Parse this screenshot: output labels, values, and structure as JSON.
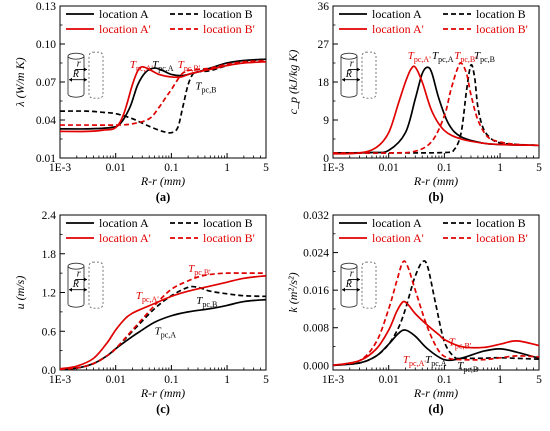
{
  "figure": {
    "legend_labels": [
      "location A",
      "location B",
      "location A'",
      "location B'"
    ],
    "inset_labels": {
      "r": "r",
      "R": "R"
    }
  },
  "chart_data": [
    {
      "type": "line",
      "panel_label": "(a)",
      "ylabel": "λ (W/m K)",
      "xlabel": "R-r (mm)",
      "xscale": "log",
      "xlim": [
        0.001,
        5
      ],
      "ylim": [
        0.01,
        0.13
      ],
      "xticks": [
        0.001,
        0.01,
        0.1,
        1,
        5
      ],
      "xtick_labels": [
        "1E-3",
        "0.01",
        "0.1",
        "1",
        "5"
      ],
      "yticks": [
        0.01,
        0.04,
        0.07,
        0.1,
        0.13
      ],
      "ytick_labels": [
        "0.01",
        "0.04",
        "0.07",
        "0.10",
        "0.13"
      ],
      "legend": "top",
      "series": [
        {
          "name": "location A",
          "color": "#000000",
          "dash": false,
          "x": [
            0.001,
            0.003,
            0.008,
            0.012,
            0.018,
            0.025,
            0.035,
            0.05,
            0.07,
            0.1,
            0.15,
            0.2,
            0.3,
            0.5,
            1,
            2,
            5
          ],
          "y": [
            0.033,
            0.033,
            0.034,
            0.037,
            0.05,
            0.068,
            0.078,
            0.081,
            0.079,
            0.076,
            0.075,
            0.076,
            0.078,
            0.081,
            0.085,
            0.087,
            0.088
          ]
        },
        {
          "name": "location B",
          "color": "#000000",
          "dash": true,
          "x": [
            0.001,
            0.003,
            0.006,
            0.01,
            0.02,
            0.04,
            0.07,
            0.1,
            0.13,
            0.16,
            0.2,
            0.25,
            0.3,
            0.5,
            1,
            2,
            5
          ],
          "y": [
            0.047,
            0.047,
            0.046,
            0.045,
            0.041,
            0.035,
            0.031,
            0.03,
            0.034,
            0.05,
            0.068,
            0.077,
            0.078,
            0.079,
            0.083,
            0.086,
            0.088
          ]
        },
        {
          "name": "location A'",
          "color": "#e00000",
          "dash": false,
          "x": [
            0.001,
            0.003,
            0.006,
            0.01,
            0.014,
            0.02,
            0.025,
            0.03,
            0.04,
            0.06,
            0.1,
            0.15,
            0.2,
            0.3,
            0.5,
            1,
            2,
            5
          ],
          "y": [
            0.031,
            0.031,
            0.032,
            0.034,
            0.045,
            0.068,
            0.079,
            0.082,
            0.08,
            0.076,
            0.074,
            0.074,
            0.076,
            0.078,
            0.08,
            0.083,
            0.085,
            0.086
          ]
        },
        {
          "name": "location B'",
          "color": "#e00000",
          "dash": true,
          "x": [
            0.001,
            0.003,
            0.01,
            0.02,
            0.04,
            0.06,
            0.08,
            0.1,
            0.13,
            0.16,
            0.2,
            0.3,
            0.5,
            1,
            2,
            5
          ],
          "y": [
            0.036,
            0.036,
            0.036,
            0.037,
            0.041,
            0.05,
            0.058,
            0.064,
            0.072,
            0.077,
            0.079,
            0.08,
            0.081,
            0.084,
            0.086,
            0.087
          ]
        }
      ],
      "annotations": [
        {
          "text": "T",
          "sub": "pc,A'",
          "color": "#e00000",
          "x": 0.018,
          "y": 0.081
        },
        {
          "text": "T",
          "sub": "pc,A",
          "color": "#000000",
          "x": 0.045,
          "y": 0.081
        },
        {
          "text": "T",
          "sub": "pc,B'",
          "color": "#e00000",
          "x": 0.13,
          "y": 0.081
        },
        {
          "text": "T",
          "sub": "pc,B",
          "color": "#000000",
          "x": 0.27,
          "y": 0.064
        }
      ]
    },
    {
      "type": "line",
      "panel_label": "(b)",
      "ylabel": "c_p (kJ/kg K)",
      "xlabel": "R-r (mm)",
      "xscale": "log",
      "xlim": [
        0.001,
        5
      ],
      "ylim": [
        0,
        36
      ],
      "xticks": [
        0.001,
        0.01,
        0.1,
        1,
        5
      ],
      "xtick_labels": [
        "1E-3",
        "0.01",
        "0.1",
        "1",
        "5"
      ],
      "yticks": [
        0,
        9,
        18,
        27,
        36
      ],
      "ytick_labels": [
        "0",
        "9",
        "18",
        "27",
        "36"
      ],
      "legend": "top",
      "series": [
        {
          "name": "location A",
          "color": "#000000",
          "dash": false,
          "x": [
            0.001,
            0.005,
            0.01,
            0.02,
            0.03,
            0.04,
            0.05,
            0.06,
            0.08,
            0.12,
            0.2,
            0.5,
            1,
            5
          ],
          "y": [
            1.2,
            1.3,
            1.8,
            6,
            14,
            20,
            21.5,
            20,
            14,
            8,
            5,
            3.5,
            3.2,
            3.0
          ]
        },
        {
          "name": "location B",
          "color": "#000000",
          "dash": true,
          "x": [
            0.001,
            0.01,
            0.1,
            0.15,
            0.2,
            0.25,
            0.3,
            0.35,
            0.4,
            0.5,
            0.7,
            1,
            2,
            5
          ],
          "y": [
            1.2,
            1.2,
            1.3,
            2,
            6,
            16,
            22,
            19,
            12,
            7,
            4.5,
            3.6,
            3.2,
            3.0
          ]
        },
        {
          "name": "location A'",
          "color": "#e00000",
          "dash": false,
          "x": [
            0.001,
            0.003,
            0.006,
            0.01,
            0.015,
            0.02,
            0.025,
            0.03,
            0.04,
            0.06,
            0.1,
            0.2,
            0.5,
            1,
            5
          ],
          "y": [
            1.0,
            1.2,
            2.5,
            6,
            13,
            18,
            21,
            21.5,
            18,
            11,
            6.5,
            4.5,
            3.5,
            3.2,
            3.0
          ]
        },
        {
          "name": "location B'",
          "color": "#e00000",
          "dash": true,
          "x": [
            0.001,
            0.01,
            0.03,
            0.06,
            0.1,
            0.13,
            0.17,
            0.2,
            0.25,
            0.3,
            0.4,
            0.6,
            1,
            2,
            5
          ],
          "y": [
            1.2,
            1.2,
            1.6,
            4,
            10,
            16,
            21,
            22.5,
            20,
            15,
            9,
            5,
            3.8,
            3.2,
            3.0
          ]
        }
      ],
      "annotations": [
        {
          "text": "T",
          "sub": "pc,A'",
          "color": "#e00000",
          "x": 0.022,
          "y": 23.5
        },
        {
          "text": "T",
          "sub": "pc,A",
          "color": "#000000",
          "x": 0.06,
          "y": 23.5
        },
        {
          "text": "T",
          "sub": "pc,B'",
          "color": "#e00000",
          "x": 0.15,
          "y": 23.5
        },
        {
          "text": "T",
          "sub": "pc,B",
          "color": "#000000",
          "x": 0.34,
          "y": 23.5
        }
      ]
    },
    {
      "type": "line",
      "panel_label": "(c)",
      "ylabel": "u (m/s)",
      "xlabel": "R-r (mm)",
      "xscale": "log",
      "xlim": [
        0.001,
        5
      ],
      "ylim": [
        0,
        2.4
      ],
      "xticks": [
        0.001,
        0.01,
        0.1,
        1,
        5
      ],
      "xtick_labels": [
        "1E-3",
        "0.01",
        "0.1",
        "1",
        "5"
      ],
      "yticks": [
        0.0,
        0.6,
        1.2,
        1.8,
        2.4
      ],
      "ytick_labels": [
        "0.0",
        "0.6",
        "1.2",
        "1.8",
        "2.4"
      ],
      "legend": "top",
      "series": [
        {
          "name": "location A",
          "color": "#000000",
          "dash": false,
          "x": [
            0.001,
            0.002,
            0.004,
            0.007,
            0.01,
            0.02,
            0.03,
            0.05,
            0.1,
            0.2,
            0.5,
            1,
            2,
            5
          ],
          "y": [
            0.01,
            0.03,
            0.1,
            0.22,
            0.33,
            0.52,
            0.62,
            0.74,
            0.84,
            0.9,
            0.95,
            1.0,
            1.06,
            1.09
          ]
        },
        {
          "name": "location B",
          "color": "#000000",
          "dash": true,
          "x": [
            0.001,
            0.002,
            0.004,
            0.007,
            0.01,
            0.02,
            0.05,
            0.1,
            0.2,
            0.3,
            0.5,
            1,
            2,
            5
          ],
          "y": [
            0.01,
            0.03,
            0.1,
            0.22,
            0.33,
            0.6,
            0.95,
            1.15,
            1.28,
            1.28,
            1.22,
            1.18,
            1.15,
            1.14
          ]
        },
        {
          "name": "location A'",
          "color": "#e00000",
          "dash": false,
          "x": [
            0.001,
            0.002,
            0.004,
            0.007,
            0.01,
            0.015,
            0.02,
            0.03,
            0.05,
            0.1,
            0.2,
            0.5,
            1,
            2,
            5
          ],
          "y": [
            0.02,
            0.06,
            0.18,
            0.42,
            0.62,
            0.8,
            0.88,
            0.95,
            1.03,
            1.14,
            1.22,
            1.3,
            1.36,
            1.42,
            1.46
          ]
        },
        {
          "name": "location B'",
          "color": "#e00000",
          "dash": true,
          "x": [
            0.001,
            0.002,
            0.004,
            0.007,
            0.01,
            0.02,
            0.05,
            0.1,
            0.2,
            0.3,
            0.5,
            1,
            2,
            5
          ],
          "y": [
            0.01,
            0.03,
            0.1,
            0.22,
            0.33,
            0.62,
            1.0,
            1.25,
            1.38,
            1.44,
            1.48,
            1.5,
            1.5,
            1.5
          ]
        }
      ],
      "annotations": [
        {
          "text": "T",
          "sub": "pc,A'",
          "color": "#e00000",
          "x": 0.023,
          "y": 1.1
        },
        {
          "text": "T",
          "sub": "pc,B'",
          "color": "#e00000",
          "x": 0.2,
          "y": 1.52
        },
        {
          "text": "T",
          "sub": "pc,B",
          "color": "#000000",
          "x": 0.28,
          "y": 1.02
        },
        {
          "text": "T",
          "sub": "pc,A",
          "color": "#000000",
          "x": 0.05,
          "y": 0.55
        }
      ]
    },
    {
      "type": "line",
      "panel_label": "(d)",
      "ylabel": "k (m²/s²)",
      "xlabel": "R-r (mm)",
      "xscale": "log",
      "xlim": [
        0.001,
        5
      ],
      "ylim": [
        -0.001,
        0.032
      ],
      "xticks": [
        0.001,
        0.01,
        0.1,
        1,
        5
      ],
      "xtick_labels": [
        "1E-3",
        "0.01",
        "0.1",
        "1",
        "5"
      ],
      "yticks": [
        0.0,
        0.008,
        0.016,
        0.024,
        0.032
      ],
      "ytick_labels": [
        "0.000",
        "0.008",
        "0.016",
        "0.024",
        "0.032"
      ],
      "legend": "top",
      "series": [
        {
          "name": "location A",
          "color": "#000000",
          "dash": false,
          "x": [
            0.001,
            0.003,
            0.006,
            0.01,
            0.015,
            0.02,
            0.03,
            0.05,
            0.1,
            0.2,
            0.5,
            1,
            2,
            5
          ],
          "y": [
            0.0,
            0.0005,
            0.002,
            0.0045,
            0.0068,
            0.0075,
            0.0062,
            0.0035,
            0.0012,
            0.0015,
            0.003,
            0.0035,
            0.0028,
            0.0015
          ]
        },
        {
          "name": "location B",
          "color": "#000000",
          "dash": true,
          "x": [
            0.001,
            0.003,
            0.006,
            0.01,
            0.015,
            0.02,
            0.025,
            0.03,
            0.04,
            0.05,
            0.07,
            0.1,
            0.15,
            0.2,
            0.5,
            1,
            5
          ],
          "y": [
            0.0,
            0.0005,
            0.002,
            0.0045,
            0.008,
            0.012,
            0.016,
            0.019,
            0.022,
            0.021,
            0.013,
            0.005,
            0.0018,
            0.0015,
            0.0015,
            0.0016,
            0.0013
          ]
        },
        {
          "name": "location A'",
          "color": "#e00000",
          "dash": false,
          "x": [
            0.001,
            0.003,
            0.006,
            0.01,
            0.014,
            0.018,
            0.022,
            0.03,
            0.05,
            0.08,
            0.1,
            0.2,
            0.5,
            1,
            2,
            5
          ],
          "y": [
            0.0,
            0.001,
            0.0035,
            0.0075,
            0.0115,
            0.0135,
            0.013,
            0.011,
            0.0085,
            0.0065,
            0.0055,
            0.004,
            0.0038,
            0.0045,
            0.0052,
            0.0042
          ]
        },
        {
          "name": "location B'",
          "color": "#e00000",
          "dash": true,
          "x": [
            0.001,
            0.003,
            0.006,
            0.01,
            0.014,
            0.018,
            0.022,
            0.03,
            0.05,
            0.08,
            0.12,
            0.2,
            0.5,
            1,
            2,
            5
          ],
          "y": [
            0.0,
            0.001,
            0.005,
            0.012,
            0.018,
            0.022,
            0.021,
            0.016,
            0.008,
            0.003,
            0.0015,
            0.0012,
            0.0012,
            0.0016,
            0.002,
            0.0018
          ]
        }
      ],
      "annotations": [
        {
          "text": "T",
          "sub": "pc,A'",
          "color": "#e00000",
          "x": 0.018,
          "y": 0.0005
        },
        {
          "text": "T",
          "sub": "pc,A",
          "color": "#000000",
          "x": 0.045,
          "y": 0.0005
        },
        {
          "text": "T",
          "sub": "pc,B'",
          "color": "#e00000",
          "x": 0.12,
          "y": 0.0042
        },
        {
          "text": "T",
          "sub": "pc,B",
          "color": "#000000",
          "x": 0.17,
          "y": -0.0008
        }
      ]
    }
  ]
}
